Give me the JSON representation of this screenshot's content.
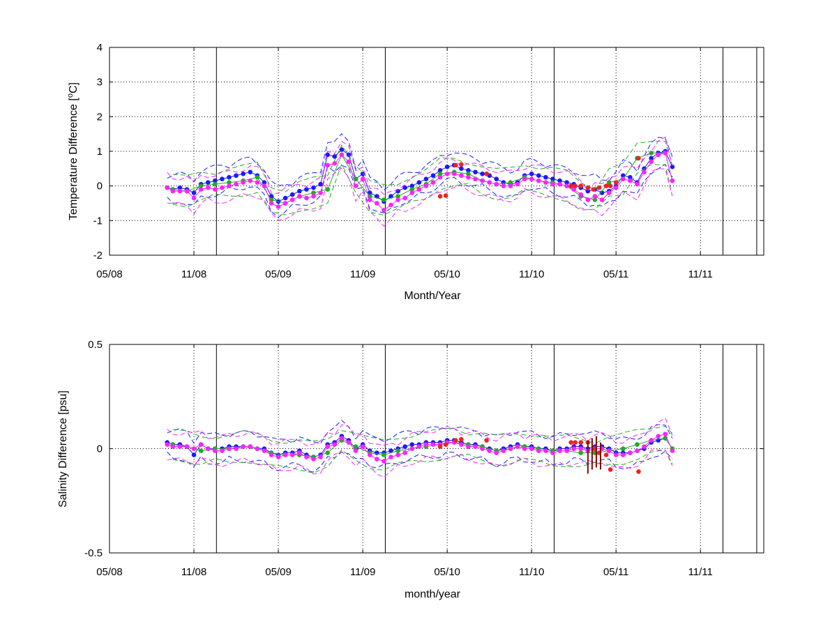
{
  "chart_data": [
    {
      "type": "scatter",
      "panel": "top",
      "xlabel": "Month/Year",
      "ylabel_main": "Temperature Difference [",
      "ylabel_sup": "o",
      "ylabel_tail": "C]",
      "ylim": [
        -2,
        4
      ],
      "yticks": [
        "-2",
        "-1",
        "0",
        "1",
        "2",
        "3",
        "4"
      ],
      "xlim": [
        0,
        46.5
      ],
      "xticks": [
        {
          "x": 0,
          "label": "05/08"
        },
        {
          "x": 6,
          "label": "11/08"
        },
        {
          "x": 12,
          "label": "05/09"
        },
        {
          "x": 18,
          "label": "11/09"
        },
        {
          "x": 24,
          "label": "05/10"
        },
        {
          "x": 30,
          "label": "11/10"
        },
        {
          "x": 36,
          "label": "05/11"
        },
        {
          "x": 42,
          "label": "11/11"
        }
      ],
      "vlines": [
        7.6,
        19.6,
        31.6,
        43.6,
        46.0
      ],
      "grid": "dotted",
      "series": [
        {
          "color": "#1a1aff",
          "marker": "dot",
          "x": [
            4.1,
            4.5,
            5.0,
            5.5,
            6.0,
            6.5,
            7.0,
            7.5,
            8.0,
            8.5,
            9.0,
            9.5,
            10.0,
            10.5,
            11.0,
            11.5,
            12.0,
            12.5,
            13.0,
            13.5,
            14.0,
            14.5,
            15.0,
            15.5,
            16.0,
            16.5,
            17.0,
            17.5,
            18.0,
            18.5,
            19.0,
            19.5,
            20.0,
            20.5,
            21.0,
            21.5,
            22.0,
            22.5,
            23.0,
            23.5,
            24.0,
            24.5,
            25.0,
            25.5,
            26.0,
            26.5,
            27.0,
            27.5,
            28.0,
            28.5,
            29.0,
            29.5,
            30.0,
            30.5,
            31.0,
            31.5,
            32.0,
            32.5,
            33.0,
            33.5,
            34.0,
            34.5,
            35.0,
            35.5,
            36.0,
            36.5,
            37.0,
            37.5,
            38.0,
            38.5,
            39.0,
            39.5,
            40.0
          ],
          "y": [
            -0.05,
            -0.1,
            -0.05,
            -0.1,
            -0.2,
            0.05,
            0.1,
            0.15,
            0.2,
            0.25,
            0.3,
            0.35,
            0.4,
            0.3,
            0.1,
            -0.3,
            -0.45,
            -0.35,
            -0.25,
            -0.15,
            -0.1,
            -0.05,
            0.05,
            0.9,
            0.85,
            1.05,
            0.9,
            0.2,
            0.35,
            -0.2,
            -0.3,
            -0.45,
            -0.3,
            -0.15,
            -0.05,
            0.0,
            0.1,
            0.2,
            0.3,
            0.45,
            0.55,
            0.6,
            0.5,
            0.45,
            0.4,
            0.35,
            0.3,
            0.2,
            0.1,
            0.05,
            0.1,
            0.3,
            0.35,
            0.3,
            0.25,
            0.2,
            0.15,
            0.1,
            0.05,
            -0.05,
            -0.15,
            -0.1,
            -0.2,
            -0.15,
            0.0,
            0.3,
            0.25,
            0.1,
            0.5,
            0.8,
            0.95,
            1.0,
            0.55
          ]
        },
        {
          "color": "#22aa22",
          "marker": "dot",
          "x": [
            4.5,
            5.5,
            6.5,
            7.5,
            8.5,
            9.5,
            10.5,
            11.5,
            12.5,
            13.5,
            14.5,
            15.5,
            16.5,
            17.5,
            18.5,
            19.5,
            20.5,
            21.5,
            22.5,
            23.5,
            24.5,
            25.5,
            26.5,
            27.5,
            28.5,
            29.5,
            30.5,
            31.5,
            32.5,
            33.5,
            34.5,
            35.5,
            36.5,
            37.5,
            38.5,
            39.5,
            40.0
          ],
          "y": [
            -0.1,
            -0.15,
            0.0,
            0.05,
            0.1,
            0.15,
            0.25,
            -0.4,
            -0.5,
            -0.3,
            -0.2,
            -0.1,
            0.9,
            0.2,
            -0.3,
            -0.4,
            -0.3,
            -0.1,
            0.05,
            0.35,
            0.4,
            0.35,
            0.15,
            0.05,
            0.1,
            0.25,
            0.15,
            0.1,
            0.0,
            -0.3,
            -0.4,
            0.1,
            0.2,
            0.8,
            0.95,
            0.95,
            0.15
          ]
        },
        {
          "color": "#ff22ff",
          "marker": "dot",
          "x": [
            4.1,
            4.5,
            5.0,
            5.5,
            6.0,
            6.5,
            7.0,
            7.5,
            8.0,
            8.5,
            9.0,
            9.5,
            10.0,
            10.5,
            11.0,
            11.5,
            12.0,
            12.5,
            13.0,
            13.5,
            14.0,
            14.5,
            15.0,
            15.5,
            16.0,
            16.5,
            17.0,
            17.5,
            18.0,
            18.5,
            19.0,
            19.5,
            20.0,
            20.5,
            21.0,
            21.5,
            22.0,
            22.5,
            23.0,
            23.5,
            24.0,
            24.5,
            25.0,
            25.5,
            26.0,
            26.5,
            27.0,
            27.5,
            28.0,
            28.5,
            29.0,
            29.5,
            30.0,
            30.5,
            31.0,
            31.5,
            32.0,
            32.5,
            33.0,
            33.5,
            34.0,
            34.5,
            35.0,
            35.5,
            36.0,
            36.5,
            37.0,
            37.5,
            38.0,
            38.5,
            39.0,
            39.5,
            40.0
          ],
          "y": [
            -0.05,
            -0.15,
            -0.15,
            -0.15,
            -0.35,
            -0.1,
            -0.05,
            -0.1,
            -0.05,
            0.0,
            0.05,
            0.1,
            0.15,
            0.1,
            0.0,
            -0.5,
            -0.6,
            -0.5,
            -0.4,
            -0.3,
            -0.35,
            -0.3,
            -0.2,
            0.6,
            0.65,
            0.9,
            0.7,
            0.0,
            0.2,
            -0.4,
            -0.5,
            -0.7,
            -0.55,
            -0.4,
            -0.35,
            -0.2,
            -0.1,
            0.0,
            0.1,
            0.25,
            0.35,
            0.35,
            0.3,
            0.25,
            0.2,
            0.15,
            0.1,
            0.05,
            0.0,
            0.0,
            0.05,
            0.2,
            0.2,
            0.15,
            0.1,
            0.05,
            0.05,
            0.0,
            -0.1,
            -0.25,
            -0.4,
            -0.3,
            -0.4,
            -0.2,
            -0.05,
            0.2,
            0.15,
            0.05,
            0.4,
            0.7,
            0.9,
            0.95,
            0.15
          ]
        },
        {
          "color": "#ee2222",
          "marker": "dot",
          "x": [
            23.5,
            23.9,
            24.6,
            25.0,
            26.8,
            32.8,
            33.1,
            33.5,
            34.0,
            34.4,
            34.8,
            35.3,
            35.6,
            36.0,
            37.6
          ],
          "y": [
            -0.3,
            -0.28,
            0.6,
            0.62,
            0.35,
            0.0,
            0.0,
            0.0,
            -0.05,
            -0.1,
            -0.05,
            0.0,
            0.0,
            0.1,
            0.8
          ]
        }
      ]
    },
    {
      "type": "scatter",
      "panel": "bottom",
      "xlabel": "month/year",
      "ylabel": "Salinity Difference [psu]",
      "ylim": [
        -0.5,
        0.5
      ],
      "yticks": [
        "-0.5",
        "0",
        "0.5"
      ],
      "xlim": [
        0,
        46.5
      ],
      "xticks": [
        {
          "x": 0,
          "label": "05/08"
        },
        {
          "x": 6,
          "label": "11/08"
        },
        {
          "x": 12,
          "label": "05/09"
        },
        {
          "x": 18,
          "label": "11/09"
        },
        {
          "x": 24,
          "label": "05/10"
        },
        {
          "x": 30,
          "label": "11/10"
        },
        {
          "x": 36,
          "label": "05/11"
        },
        {
          "x": 42,
          "label": "11/11"
        }
      ],
      "vlines": [
        7.6,
        19.6,
        31.6,
        43.6,
        46.0
      ],
      "grid": "dotted",
      "series": [
        {
          "color": "#1a1aff",
          "marker": "dot",
          "x": [
            4.1,
            4.5,
            5.0,
            5.5,
            6.0,
            6.5,
            7.0,
            7.5,
            8.0,
            8.5,
            9.0,
            9.5,
            10.0,
            10.5,
            11.0,
            11.5,
            12.0,
            12.5,
            13.0,
            13.5,
            14.0,
            14.5,
            15.0,
            15.5,
            16.0,
            16.5,
            17.0,
            17.5,
            18.0,
            18.5,
            19.0,
            19.5,
            20.0,
            20.5,
            21.0,
            21.5,
            22.0,
            22.5,
            23.0,
            23.5,
            24.0,
            24.5,
            25.0,
            25.5,
            26.0,
            26.5,
            27.0,
            27.5,
            28.0,
            28.5,
            29.0,
            29.5,
            30.0,
            30.5,
            31.0,
            31.5,
            32.0,
            32.5,
            33.0,
            33.5,
            34.0,
            34.5,
            35.0,
            35.5,
            36.0,
            36.5,
            37.0,
            37.5,
            38.0,
            38.5,
            39.0,
            39.5,
            40.0
          ],
          "y": [
            0.03,
            0.02,
            0.02,
            0.01,
            -0.03,
            0.02,
            0.0,
            0.0,
            0.0,
            0.01,
            0.01,
            0.01,
            0.01,
            0.0,
            0.0,
            -0.02,
            -0.03,
            -0.02,
            -0.02,
            -0.01,
            -0.03,
            -0.04,
            -0.03,
            0.02,
            0.03,
            0.06,
            0.04,
            0.0,
            0.02,
            -0.01,
            -0.02,
            -0.02,
            -0.01,
            0.0,
            0.01,
            0.02,
            0.02,
            0.03,
            0.03,
            0.03,
            0.04,
            0.04,
            0.03,
            0.02,
            0.02,
            0.01,
            0.0,
            -0.01,
            0.0,
            0.01,
            0.02,
            0.01,
            0.01,
            0.0,
            0.0,
            -0.01,
            0.0,
            0.0,
            0.01,
            0.01,
            0.0,
            0.01,
            0.01,
            0.0,
            -0.02,
            -0.02,
            -0.02,
            -0.01,
            0.0,
            0.03,
            0.04,
            0.05,
            0.0
          ]
        },
        {
          "color": "#22aa22",
          "marker": "dot",
          "x": [
            4.5,
            5.5,
            6.5,
            7.5,
            8.5,
            9.5,
            10.5,
            11.5,
            12.5,
            13.5,
            14.5,
            15.5,
            16.5,
            17.5,
            18.5,
            19.5,
            20.5,
            21.5,
            22.5,
            23.5,
            24.5,
            25.5,
            26.5,
            27.5,
            28.5,
            29.5,
            30.5,
            31.5,
            32.5,
            33.5,
            34.5,
            35.5,
            36.5,
            37.5,
            38.5,
            39.5,
            40.0
          ],
          "y": [
            0.02,
            0.01,
            -0.01,
            0.0,
            0.0,
            0.01,
            0.0,
            -0.02,
            -0.03,
            -0.03,
            -0.04,
            -0.02,
            0.04,
            0.01,
            -0.02,
            -0.03,
            -0.01,
            0.0,
            0.01,
            0.02,
            0.03,
            0.02,
            0.01,
            -0.01,
            0.0,
            0.01,
            0.0,
            -0.01,
            -0.01,
            -0.02,
            -0.02,
            -0.01,
            0.0,
            0.02,
            0.04,
            0.05,
            0.0
          ]
        },
        {
          "color": "#ff22ff",
          "marker": "dot",
          "x": [
            4.1,
            4.5,
            5.0,
            5.5,
            6.0,
            6.5,
            7.0,
            7.5,
            8.0,
            8.5,
            9.0,
            9.5,
            10.0,
            10.5,
            11.0,
            11.5,
            12.0,
            12.5,
            13.0,
            13.5,
            14.0,
            14.5,
            15.0,
            15.5,
            16.0,
            16.5,
            17.0,
            17.5,
            18.0,
            18.5,
            19.0,
            19.5,
            20.0,
            20.5,
            21.0,
            21.5,
            22.0,
            22.5,
            23.0,
            23.5,
            24.0,
            24.5,
            25.0,
            25.5,
            26.0,
            26.5,
            27.0,
            27.5,
            28.0,
            28.5,
            29.0,
            29.5,
            30.0,
            30.5,
            31.0,
            31.5,
            32.0,
            32.5,
            33.0,
            33.5,
            34.0,
            34.5,
            35.0,
            35.5,
            36.0,
            36.5,
            37.0,
            37.5,
            38.0,
            38.5,
            39.0,
            39.5,
            40.0
          ],
          "y": [
            0.02,
            0.01,
            0.01,
            0.01,
            0.0,
            0.02,
            0.0,
            -0.01,
            -0.01,
            0.0,
            0.0,
            0.01,
            0.01,
            0.0,
            -0.01,
            -0.03,
            -0.04,
            -0.03,
            -0.03,
            -0.02,
            -0.04,
            -0.05,
            -0.04,
            0.01,
            0.02,
            0.05,
            0.03,
            -0.01,
            0.01,
            -0.03,
            -0.05,
            -0.06,
            -0.04,
            -0.03,
            -0.02,
            0.0,
            0.01,
            0.02,
            0.02,
            0.02,
            0.03,
            0.03,
            0.02,
            0.01,
            0.01,
            0.0,
            -0.01,
            -0.02,
            -0.01,
            0.0,
            0.01,
            0.0,
            0.0,
            -0.01,
            -0.01,
            -0.02,
            -0.01,
            -0.01,
            0.0,
            0.0,
            -0.01,
            0.0,
            0.0,
            -0.01,
            -0.03,
            -0.03,
            -0.02,
            -0.01,
            0.01,
            0.04,
            0.06,
            0.07,
            -0.01
          ]
        },
        {
          "color": "#ee2222",
          "marker": "dot",
          "x": [
            23.5,
            23.9,
            24.6,
            25.0,
            26.8,
            32.8,
            33.1,
            33.5,
            34.0,
            34.4,
            34.8,
            35.3,
            35.6,
            37.6
          ],
          "y": [
            0.01,
            0.02,
            0.04,
            0.045,
            0.04,
            0.03,
            0.03,
            0.03,
            0.03,
            0.0,
            -0.02,
            -0.03,
            -0.1,
            -0.11
          ]
        }
      ],
      "errorbars": {
        "color": "#7a0a0a",
        "x": [
          34.0,
          34.3,
          34.6,
          34.9
        ],
        "low": [
          -0.12,
          -0.1,
          -0.09,
          -0.1
        ],
        "high": [
          0.04,
          0.05,
          0.06,
          0.03
        ]
      }
    }
  ]
}
